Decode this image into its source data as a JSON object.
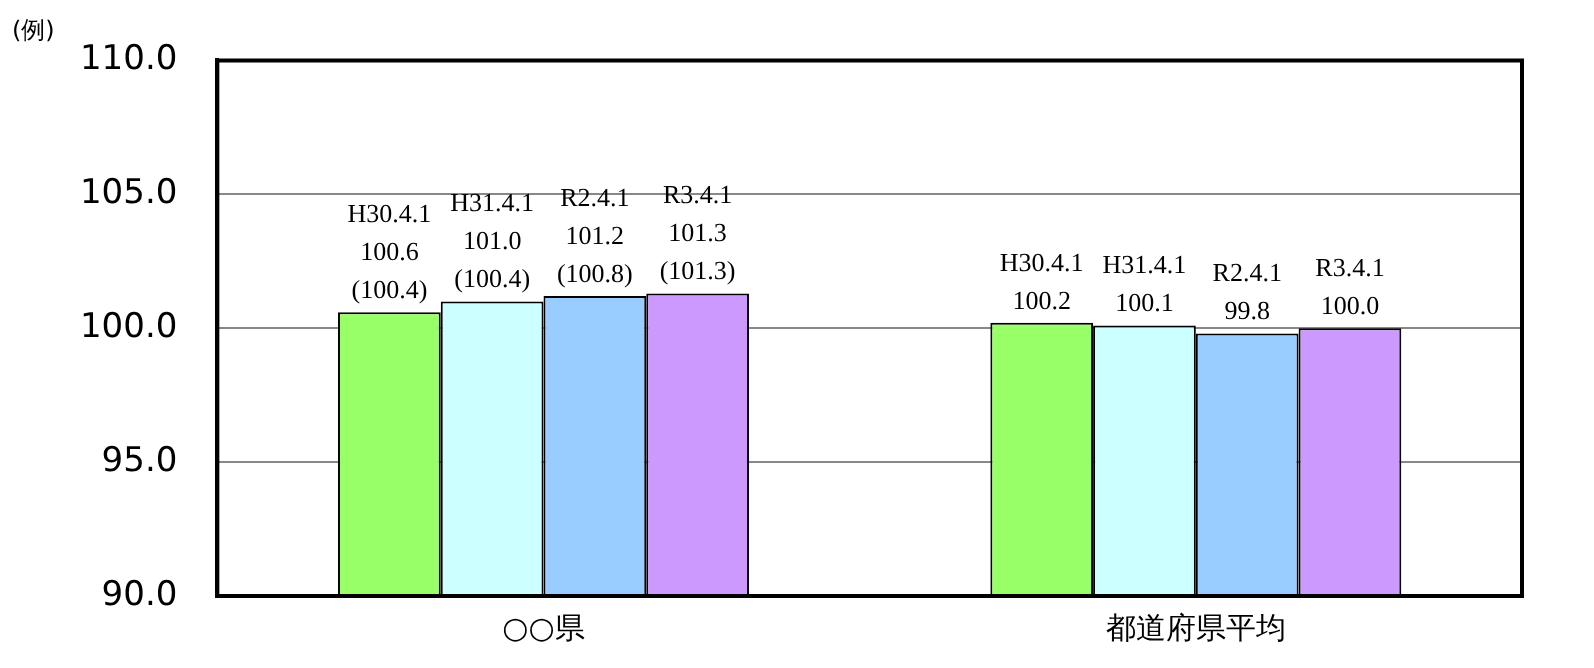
{
  "chart_data": {
    "type": "bar",
    "ylabel": "(例)",
    "categories": [
      "○○県",
      "都道府県平均"
    ],
    "series": [
      {
        "name": "H30.4.1",
        "color": "#99ff66",
        "values": [
          100.6,
          100.2
        ],
        "value_labels": [
          "100.6\n(100.4)",
          "100.2"
        ]
      },
      {
        "name": "H31.4.1",
        "color": "#ccffff",
        "values": [
          101.0,
          100.1
        ],
        "value_labels": [
          "101.0\n(100.4)",
          "100.1"
        ]
      },
      {
        "name": "R2.4.1",
        "color": "#99ccff",
        "values": [
          101.2,
          99.8
        ],
        "value_labels": [
          "101.2\n(100.8)",
          "99.8"
        ]
      },
      {
        "name": "R3.4.1",
        "color": "#cc99ff",
        "values": [
          101.3,
          100.0
        ],
        "value_labels": [
          "101.3\n(101.3)",
          "100.0"
        ]
      }
    ],
    "ylim": [
      90,
      110
    ],
    "yticks": [
      {
        "value": 90,
        "label": "90.0"
      },
      {
        "value": 95,
        "label": "95.0"
      },
      {
        "value": 100,
        "label": "100.0"
      },
      {
        "value": 105,
        "label": "105.0"
      },
      {
        "value": 110,
        "label": "110.0"
      }
    ],
    "grid": "y",
    "legend": false
  }
}
